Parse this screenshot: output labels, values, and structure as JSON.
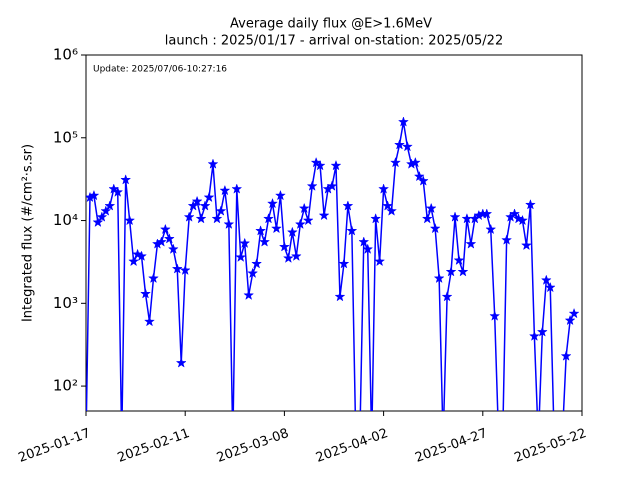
{
  "chart_data": {
    "type": "line",
    "title": "Average daily flux @E>1.6MeV",
    "subtitle": "launch : 2025/01/17 - arrival on-station: 2025/05/22",
    "annotation": "Update: 2025/07/06-10:27:16",
    "y_label": "Integrated flux (#/cm²·s.sr)",
    "log_y": true,
    "marker": "star",
    "x": [
      "2025-01-17",
      "2025-01-18",
      "2025-01-19",
      "2025-01-20",
      "2025-01-21",
      "2025-01-22",
      "2025-01-23",
      "2025-01-24",
      "2025-01-25",
      "2025-01-26",
      "2025-01-27",
      "2025-01-28",
      "2025-01-29",
      "2025-01-30",
      "2025-01-31",
      "2025-02-01",
      "2025-02-02",
      "2025-02-03",
      "2025-02-04",
      "2025-02-05",
      "2025-02-06",
      "2025-02-07",
      "2025-02-08",
      "2025-02-09",
      "2025-02-10",
      "2025-02-11",
      "2025-02-12",
      "2025-02-13",
      "2025-02-14",
      "2025-02-15",
      "2025-02-16",
      "2025-02-17",
      "2025-02-18",
      "2025-02-19",
      "2025-02-20",
      "2025-02-21",
      "2025-02-22",
      "2025-02-23",
      "2025-02-24",
      "2025-02-25",
      "2025-02-26",
      "2025-02-27",
      "2025-02-28",
      "2025-03-01",
      "2025-03-02",
      "2025-03-03",
      "2025-03-04",
      "2025-03-05",
      "2025-03-06",
      "2025-03-07",
      "2025-03-08",
      "2025-03-09",
      "2025-03-10",
      "2025-03-11",
      "2025-03-12",
      "2025-03-13",
      "2025-03-14",
      "2025-03-15",
      "2025-03-16",
      "2025-03-17",
      "2025-03-18",
      "2025-03-19",
      "2025-03-20",
      "2025-03-21",
      "2025-03-22",
      "2025-03-23",
      "2025-03-24",
      "2025-03-25",
      "2025-03-26",
      "2025-03-27",
      "2025-03-28",
      "2025-03-29",
      "2025-03-30",
      "2025-03-31",
      "2025-04-01",
      "2025-04-02",
      "2025-04-03",
      "2025-04-04",
      "2025-04-05",
      "2025-04-06",
      "2025-04-07",
      "2025-04-08",
      "2025-04-09",
      "2025-04-10",
      "2025-04-11",
      "2025-04-12",
      "2025-04-13",
      "2025-04-14",
      "2025-04-15",
      "2025-04-16",
      "2025-04-17",
      "2025-04-18",
      "2025-04-19",
      "2025-04-20",
      "2025-04-21",
      "2025-04-22",
      "2025-04-23",
      "2025-04-24",
      "2025-04-25",
      "2025-04-26",
      "2025-04-27",
      "2025-04-28",
      "2025-04-29",
      "2025-04-30",
      "2025-05-01",
      "2025-05-02",
      "2025-05-03",
      "2025-05-04",
      "2025-05-05",
      "2025-05-06",
      "2025-05-07",
      "2025-05-08",
      "2025-05-09",
      "2025-05-10",
      "2025-05-11",
      "2025-05-12",
      "2025-05-13",
      "2025-05-14",
      "2025-05-15",
      "2025-05-16",
      "2025-05-17",
      "2025-05-18",
      "2025-05-19",
      "2025-05-20"
    ],
    "series": [
      {
        "color": "#0000ff",
        "values": [
          0,
          19000,
          20000,
          9500,
          11000,
          13000,
          15000,
          24000,
          22000,
          0,
          31000,
          10000,
          3200,
          3900,
          3700,
          1300,
          600,
          2000,
          5200,
          5500,
          7800,
          6000,
          4500,
          2600,
          190,
          2500,
          11000,
          15000,
          17000,
          10500,
          15000,
          19000,
          48000,
          10500,
          13000,
          23000,
          9000,
          0,
          24000,
          3600,
          5300,
          1250,
          2300,
          3000,
          7500,
          5500,
          10500,
          16000,
          8000,
          20000,
          4800,
          3500,
          7200,
          3700,
          9000,
          14000,
          10000,
          26000,
          50000,
          46000,
          11500,
          24000,
          26000,
          46000,
          1200,
          3000,
          15000,
          7500,
          0,
          0,
          5500,
          4500,
          0,
          10500,
          3200,
          24000,
          15000,
          13000,
          50000,
          82000,
          155000,
          78000,
          48000,
          50000,
          34000,
          30000,
          10500,
          14000,
          8000,
          2000,
          0,
          1200,
          2400,
          11000,
          3300,
          2400,
          10500,
          5200,
          10500,
          11500,
          12000,
          12000,
          7800,
          700,
          0,
          0,
          5800,
          11000,
          12000,
          10500,
          10000,
          5000,
          15500,
          400,
          0,
          450,
          1900,
          1550,
          0,
          0,
          0,
          230,
          620,
          750
        ]
      }
    ],
    "xlim": [
      "2025-01-17",
      "2025-05-22"
    ],
    "xticks": [
      "2025-01-17",
      "2025-02-11",
      "2025-03-08",
      "2025-04-02",
      "2025-04-27",
      "2025-05-22"
    ],
    "ylim": [
      50,
      1000000
    ],
    "yticks": [
      {
        "value": 100,
        "label": "10²"
      },
      {
        "value": 1000,
        "label": "10³"
      },
      {
        "value": 10000,
        "label": "10⁴"
      },
      {
        "value": 100000,
        "label": "10⁵"
      },
      {
        "value": 1000000,
        "label": "10⁶"
      }
    ]
  }
}
